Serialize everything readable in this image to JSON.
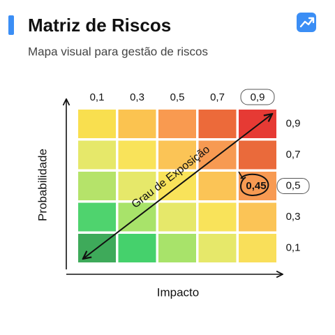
{
  "header": {
    "title": "Matriz de Riscos",
    "subtitle": "Mapa visual para gestão de riscos"
  },
  "matrix": {
    "column_labels": [
      "0,1",
      "0,3",
      "0,5",
      "0,7",
      "0,9"
    ],
    "row_labels": [
      "0,9",
      "0,7",
      "0,5",
      "0,3",
      "0,1"
    ],
    "x_axis_label": "Impacto",
    "y_axis_label": "Probabilidade",
    "diagonal_label": "Grau de Exposição",
    "highlight_value": "0,45",
    "cell_colors": [
      [
        "#f9df4f",
        "#fbc350",
        "#f99a50",
        "#ec6a3a",
        "#e63a34"
      ],
      [
        "#e6e86a",
        "#f9e35a",
        "#fbc456",
        "#f79a52",
        "#ea6a3b"
      ],
      [
        "#b5e36a",
        "#e6e86a",
        "#f9e35a",
        "#fbc456",
        "#f79a52"
      ],
      [
        "#4fd36e",
        "#a8e36a",
        "#e6e86a",
        "#f9e35a",
        "#fbc456"
      ],
      [
        "#3eaa5a",
        "#45d16c",
        "#a8e36a",
        "#e6e86a",
        "#f9df5a"
      ]
    ]
  }
}
